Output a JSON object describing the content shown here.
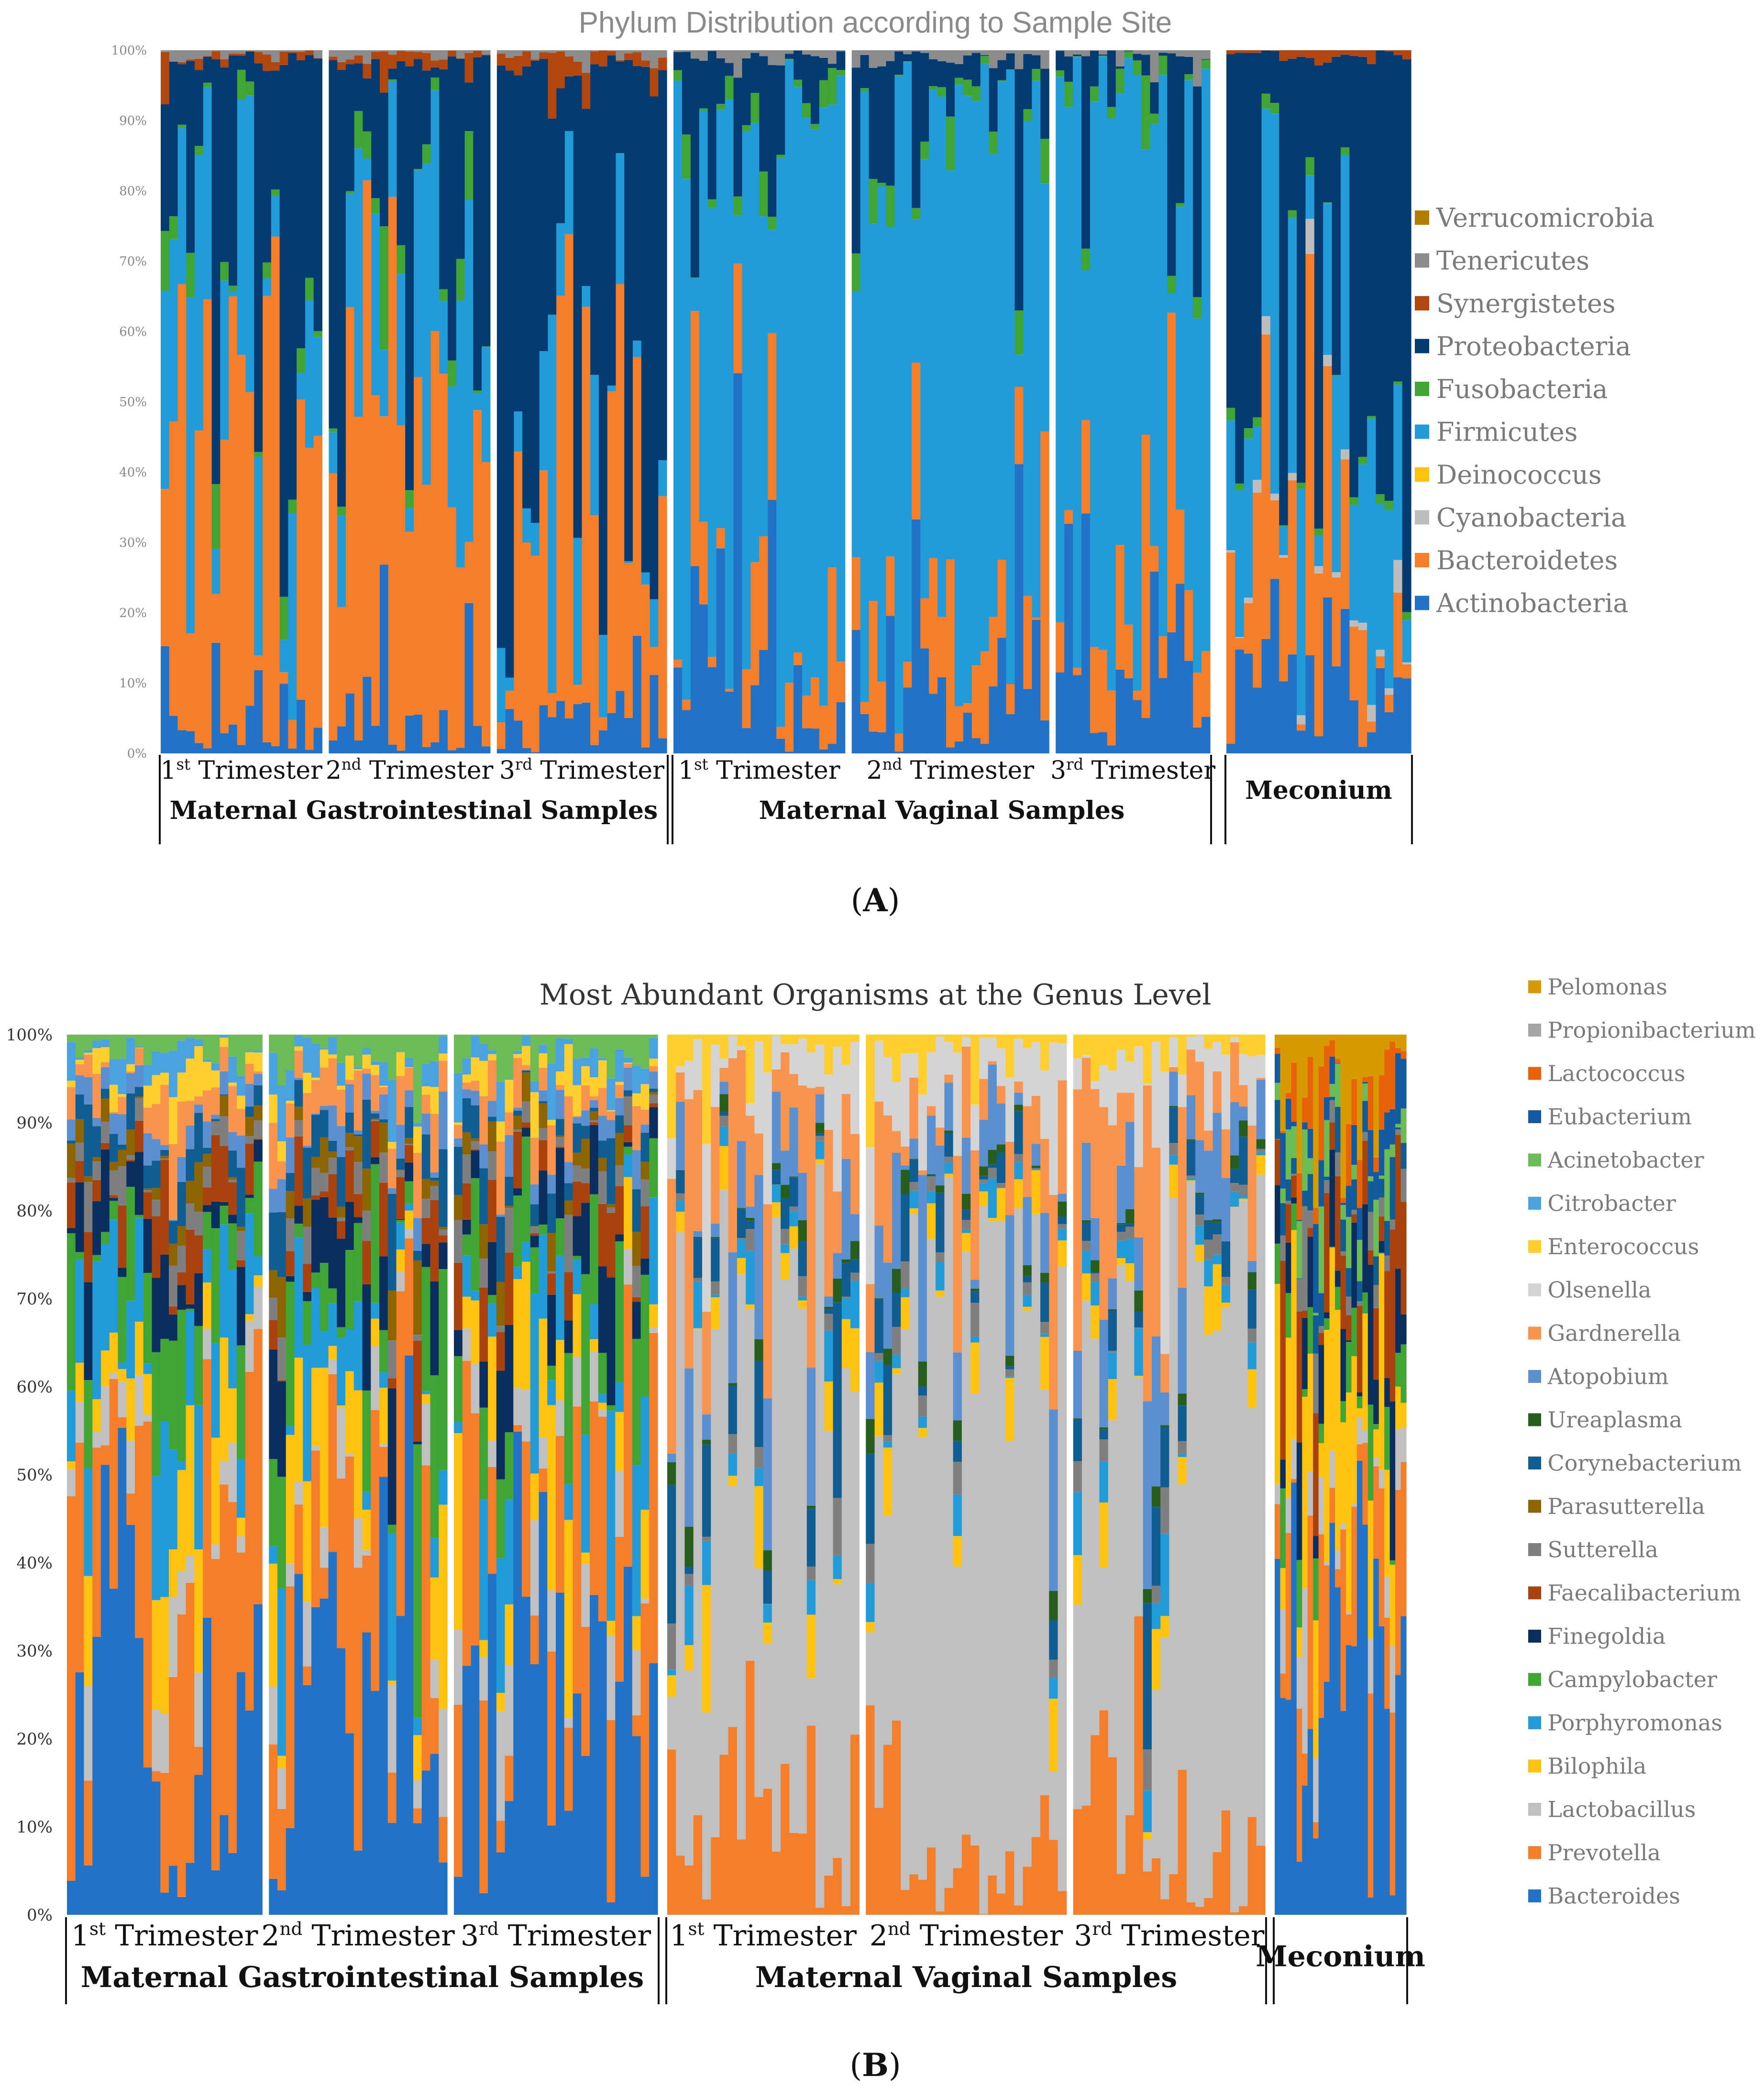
{
  "figure_labels": [
    "A",
    "B"
  ],
  "chart_data": [
    {
      "type": "stacked-bar",
      "id": "A",
      "title": "Phylum Distribution according to Sample Site",
      "yaxis": {
        "min": 0,
        "max": 100,
        "ticks": [
          "0%",
          "10%",
          "20%",
          "30%",
          "40%",
          "50%",
          "60%",
          "70%",
          "80%",
          "90%",
          "100%"
        ]
      },
      "series": [
        {
          "name": "Actinobacteria",
          "color": "#2273c8"
        },
        {
          "name": "Bacteroidetes",
          "color": "#f47e2a"
        },
        {
          "name": "Cyanobacteria",
          "color": "#bdbdbd"
        },
        {
          "name": "Deinococcus",
          "color": "#ffc20e"
        },
        {
          "name": "Firmicutes",
          "color": "#229bd8"
        },
        {
          "name": "Fusobacteria",
          "color": "#3fa535"
        },
        {
          "name": "Proteobacteria",
          "color": "#053b70"
        },
        {
          "name": "Synergistetes",
          "color": "#b3450f"
        },
        {
          "name": "Tenericutes",
          "color": "#8c8c8c"
        },
        {
          "name": "Verrucomicrobia",
          "color": "#b37d00"
        }
      ],
      "legend_order": [
        "Verrucomicrobia",
        "Tenericutes",
        "Synergistetes",
        "Proteobacteria",
        "Fusobacteria",
        "Firmicutes",
        "Deinococcus",
        "Cyanobacteria",
        "Bacteroidetes",
        "Actinobacteria"
      ],
      "groups": [
        {
          "name": "Maternal Gastrointestinal Samples",
          "subgroups": [
            {
              "base": "1",
              "sup": "st",
              "rest": " Trimester",
              "n": 19,
              "profile": "gut"
            },
            {
              "base": "2",
              "sup": "nd",
              "rest": " Trimester",
              "n": 19,
              "profile": "gut"
            },
            {
              "base": "3",
              "sup": "rd",
              "rest": " Trimester",
              "n": 20,
              "profile": "gut3"
            }
          ]
        },
        {
          "name": "Maternal Vaginal Samples",
          "subgroups": [
            {
              "base": "1",
              "sup": "st",
              "rest": " Trimester",
              "n": 20,
              "profile": "vag"
            },
            {
              "base": "2",
              "sup": "nd",
              "rest": " Trimester",
              "n": 23,
              "profile": "vag"
            },
            {
              "base": "3",
              "sup": "rd",
              "rest": " Trimester",
              "n": 18,
              "profile": "vag"
            }
          ]
        },
        {
          "name": "Meconium",
          "subgroups": [
            {
              "n": 21,
              "profile": "mec"
            }
          ]
        }
      ],
      "seed": 17
    },
    {
      "type": "stacked-bar",
      "id": "B",
      "title": "Most Abundant Organisms at the Genus Level",
      "yaxis": {
        "min": 0,
        "max": 100,
        "ticks": [
          "0%",
          "10%",
          "20%",
          "30%",
          "40%",
          "50%",
          "60%",
          "70%",
          "80%",
          "90%",
          "100%"
        ]
      },
      "series": [
        {
          "name": "Bacteroides",
          "color": "#2273c8"
        },
        {
          "name": "Prevotella",
          "color": "#f47e2a"
        },
        {
          "name": "Lactobacillus",
          "color": "#c0c0c0"
        },
        {
          "name": "Bilophila",
          "color": "#ffc20e"
        },
        {
          "name": "Porphyromonas",
          "color": "#229bd8"
        },
        {
          "name": "Campylobacter",
          "color": "#3fa535"
        },
        {
          "name": "Finegoldia",
          "color": "#0a2f5e"
        },
        {
          "name": "Faecalibacterium",
          "color": "#a9420c"
        },
        {
          "name": "Sutterella",
          "color": "#7f7f7f"
        },
        {
          "name": "Parasutterella",
          "color": "#8c6400"
        },
        {
          "name": "Corynebacterium",
          "color": "#0f5d92"
        },
        {
          "name": "Ureaplasma",
          "color": "#265e1e"
        },
        {
          "name": "Atopobium",
          "color": "#5b8fd0"
        },
        {
          "name": "Gardnerella",
          "color": "#f8944e"
        },
        {
          "name": "Olsenella",
          "color": "#d4d4d4"
        },
        {
          "name": "Enterococcus",
          "color": "#ffcf2e"
        },
        {
          "name": "Citrobacter",
          "color": "#4aa3df"
        },
        {
          "name": "Acinetobacter",
          "color": "#6dbb56"
        },
        {
          "name": "Eubacterium",
          "color": "#145aa0"
        },
        {
          "name": "Lactococcus",
          "color": "#e8620a"
        },
        {
          "name": "Propionibacterium",
          "color": "#a5a5a5"
        },
        {
          "name": "Pelomonas",
          "color": "#d99a00"
        }
      ],
      "legend_order": [
        "Pelomonas",
        "Propionibacterium",
        "Lactococcus",
        "Eubacterium",
        "Acinetobacter",
        "Citrobacter",
        "Enterococcus",
        "Olsenella",
        "Gardnerella",
        "Atopobium",
        "Ureaplasma",
        "Corynebacterium",
        "Parasutterella",
        "Sutterella",
        "Faecalibacterium",
        "Finegoldia",
        "Campylobacter",
        "Porphyromonas",
        "Bilophila",
        "Lactobacillus",
        "Prevotella",
        "Bacteroides"
      ],
      "groups": [
        {
          "name": "Maternal Gastrointestinal Samples",
          "subgroups": [
            {
              "base": "1",
              "sup": "st",
              "rest": " Trimester",
              "n": 23,
              "profile": "gut"
            },
            {
              "base": "2",
              "sup": "nd",
              "rest": " Trimester",
              "n": 21,
              "profile": "gut"
            },
            {
              "base": "3",
              "sup": "rd",
              "rest": " Trimester",
              "n": 24,
              "profile": "gut"
            }
          ]
        },
        {
          "name": "Maternal Vaginal Samples",
          "subgroups": [
            {
              "base": "1",
              "sup": "st",
              "rest": " Trimester",
              "n": 22,
              "profile": "vag"
            },
            {
              "base": "2",
              "sup": "nd",
              "rest": " Trimester",
              "n": 23,
              "profile": "vag"
            },
            {
              "base": "3",
              "sup": "rd",
              "rest": " Trimester",
              "n": 22,
              "profile": "vag"
            }
          ]
        },
        {
          "name": "Meconium",
          "subgroups": [
            {
              "n": 24,
              "profile": "mec"
            }
          ]
        }
      ],
      "seed": 91
    }
  ]
}
